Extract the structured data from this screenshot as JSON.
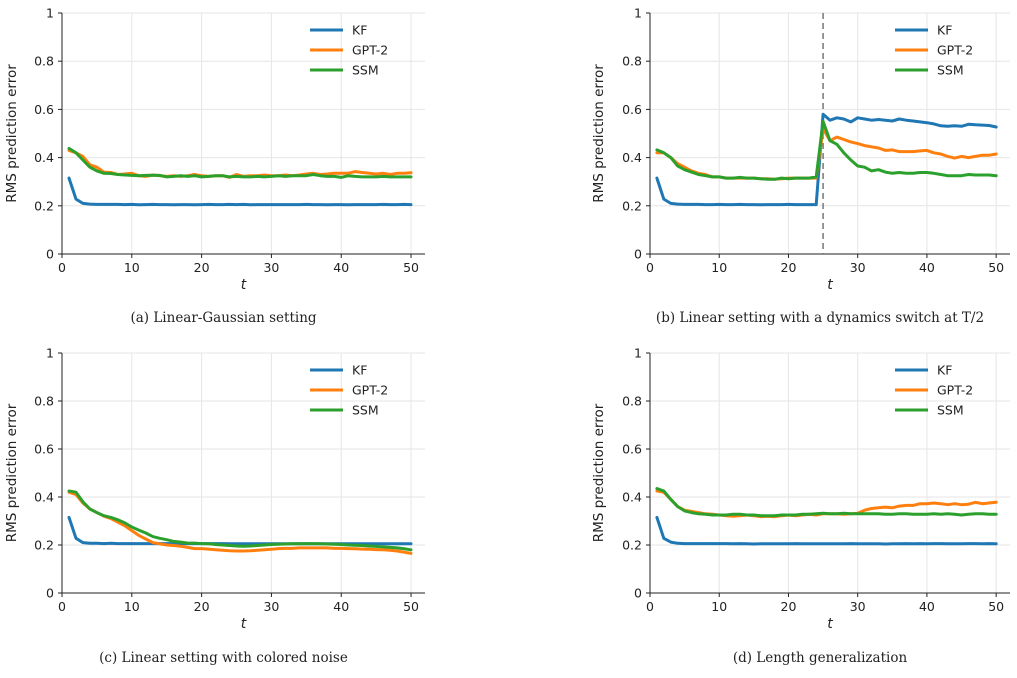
{
  "colors": {
    "KF": "#1f77b4",
    "GPT-2": "#ff7f0e",
    "SSM": "#2ca02c",
    "switch": "#777777"
  },
  "chart_data": [
    {
      "type": "line",
      "caption": "(a) Linear-Gaussian setting",
      "xlabel": "t",
      "ylabel": "RMS prediction error",
      "xlim": [
        0,
        52
      ],
      "ylim": [
        0,
        1.0
      ],
      "xticks": [
        0,
        10,
        20,
        30,
        40,
        50
      ],
      "yticks": [
        0.0,
        0.2,
        0.4,
        0.6,
        0.8,
        1.0
      ],
      "grid": true,
      "legend": "top-right",
      "x": [
        1,
        2,
        3,
        4,
        5,
        6,
        7,
        8,
        9,
        10,
        11,
        12,
        13,
        14,
        15,
        16,
        17,
        18,
        19,
        20,
        21,
        22,
        23,
        24,
        25,
        26,
        27,
        28,
        29,
        30,
        31,
        32,
        33,
        34,
        35,
        36,
        37,
        38,
        39,
        40,
        41,
        42,
        43,
        44,
        45,
        46,
        47,
        48,
        49,
        50
      ],
      "series": [
        {
          "name": "KF",
          "values": [
            0.315,
            0.228,
            0.21,
            0.207,
            0.206,
            0.206,
            0.206,
            0.206,
            0.205,
            0.206,
            0.204,
            0.205,
            0.206,
            0.205,
            0.205,
            0.204,
            0.205,
            0.205,
            0.204,
            0.205,
            0.206,
            0.205,
            0.205,
            0.206,
            0.205,
            0.206,
            0.204,
            0.205,
            0.205,
            0.205,
            0.205,
            0.205,
            0.205,
            0.205,
            0.206,
            0.205,
            0.205,
            0.204,
            0.205,
            0.205,
            0.204,
            0.205,
            0.205,
            0.205,
            0.205,
            0.206,
            0.205,
            0.205,
            0.206,
            0.205
          ]
        },
        {
          "name": "GPT-2",
          "values": [
            0.43,
            0.42,
            0.405,
            0.37,
            0.36,
            0.34,
            0.338,
            0.33,
            0.332,
            0.335,
            0.325,
            0.322,
            0.328,
            0.325,
            0.322,
            0.325,
            0.322,
            0.325,
            0.33,
            0.325,
            0.322,
            0.325,
            0.325,
            0.318,
            0.33,
            0.322,
            0.325,
            0.325,
            0.328,
            0.325,
            0.325,
            0.328,
            0.325,
            0.328,
            0.332,
            0.335,
            0.33,
            0.332,
            0.335,
            0.335,
            0.335,
            0.342,
            0.338,
            0.335,
            0.332,
            0.335,
            0.33,
            0.335,
            0.335,
            0.337
          ]
        },
        {
          "name": "SSM",
          "values": [
            0.438,
            0.42,
            0.39,
            0.36,
            0.345,
            0.335,
            0.334,
            0.33,
            0.328,
            0.326,
            0.325,
            0.326,
            0.327,
            0.326,
            0.32,
            0.322,
            0.325,
            0.322,
            0.325,
            0.32,
            0.322,
            0.325,
            0.325,
            0.32,
            0.322,
            0.32,
            0.32,
            0.322,
            0.32,
            0.322,
            0.325,
            0.322,
            0.325,
            0.325,
            0.325,
            0.33,
            0.325,
            0.322,
            0.322,
            0.318,
            0.325,
            0.322,
            0.32,
            0.32,
            0.32,
            0.322,
            0.32,
            0.32,
            0.32,
            0.32
          ]
        }
      ]
    },
    {
      "type": "line",
      "caption": "(b) Linear setting with a dynamics switch at T/2",
      "xlabel": "t",
      "ylabel": "RMS prediction error",
      "xlim": [
        0,
        52
      ],
      "ylim": [
        0,
        1.0
      ],
      "xticks": [
        0,
        10,
        20,
        30,
        40,
        50
      ],
      "yticks": [
        0.0,
        0.2,
        0.4,
        0.6,
        0.8,
        1.0
      ],
      "grid": true,
      "legend": "top-right",
      "vline": 25,
      "x": [
        1,
        2,
        3,
        4,
        5,
        6,
        7,
        8,
        9,
        10,
        11,
        12,
        13,
        14,
        15,
        16,
        17,
        18,
        19,
        20,
        21,
        22,
        23,
        24,
        25,
        26,
        27,
        28,
        29,
        30,
        31,
        32,
        33,
        34,
        35,
        36,
        37,
        38,
        39,
        40,
        41,
        42,
        43,
        44,
        45,
        46,
        47,
        48,
        49,
        50
      ],
      "series": [
        {
          "name": "KF",
          "values": [
            0.315,
            0.228,
            0.21,
            0.207,
            0.206,
            0.206,
            0.206,
            0.205,
            0.205,
            0.206,
            0.205,
            0.205,
            0.206,
            0.205,
            0.205,
            0.204,
            0.205,
            0.205,
            0.205,
            0.206,
            0.205,
            0.205,
            0.205,
            0.205,
            0.58,
            0.555,
            0.565,
            0.56,
            0.548,
            0.565,
            0.56,
            0.555,
            0.558,
            0.555,
            0.552,
            0.56,
            0.555,
            0.552,
            0.548,
            0.545,
            0.54,
            0.532,
            0.53,
            0.532,
            0.53,
            0.538,
            0.536,
            0.535,
            0.533,
            0.527
          ]
        },
        {
          "name": "GPT-2",
          "values": [
            0.42,
            0.42,
            0.4,
            0.375,
            0.36,
            0.345,
            0.335,
            0.33,
            0.32,
            0.32,
            0.315,
            0.315,
            0.315,
            0.315,
            0.315,
            0.312,
            0.312,
            0.31,
            0.312,
            0.315,
            0.315,
            0.315,
            0.315,
            0.315,
            0.52,
            0.47,
            0.485,
            0.475,
            0.465,
            0.458,
            0.45,
            0.445,
            0.44,
            0.43,
            0.432,
            0.425,
            0.425,
            0.425,
            0.428,
            0.43,
            0.42,
            0.415,
            0.405,
            0.398,
            0.405,
            0.4,
            0.405,
            0.41,
            0.41,
            0.415
          ]
        },
        {
          "name": "SSM",
          "values": [
            0.432,
            0.42,
            0.4,
            0.365,
            0.35,
            0.34,
            0.33,
            0.325,
            0.32,
            0.32,
            0.315,
            0.315,
            0.318,
            0.315,
            0.315,
            0.312,
            0.31,
            0.31,
            0.315,
            0.312,
            0.315,
            0.315,
            0.315,
            0.32,
            0.55,
            0.47,
            0.455,
            0.42,
            0.39,
            0.365,
            0.36,
            0.345,
            0.35,
            0.34,
            0.335,
            0.338,
            0.335,
            0.335,
            0.338,
            0.338,
            0.335,
            0.33,
            0.325,
            0.325,
            0.325,
            0.33,
            0.328,
            0.328,
            0.328,
            0.325
          ]
        }
      ]
    },
    {
      "type": "line",
      "caption": "(c) Linear setting with colored noise",
      "xlabel": "t",
      "ylabel": "RMS prediction error",
      "xlim": [
        0,
        52
      ],
      "ylim": [
        0,
        1.0
      ],
      "xticks": [
        0,
        10,
        20,
        30,
        40,
        50
      ],
      "yticks": [
        0.0,
        0.2,
        0.4,
        0.6,
        0.8,
        1.0
      ],
      "grid": true,
      "legend": "top-right",
      "x": [
        1,
        2,
        3,
        4,
        5,
        6,
        7,
        8,
        9,
        10,
        11,
        12,
        13,
        14,
        15,
        16,
        17,
        18,
        19,
        20,
        21,
        22,
        23,
        24,
        25,
        26,
        27,
        28,
        29,
        30,
        31,
        32,
        33,
        34,
        35,
        36,
        37,
        38,
        39,
        40,
        41,
        42,
        43,
        44,
        45,
        46,
        47,
        48,
        49,
        50
      ],
      "series": [
        {
          "name": "KF",
          "values": [
            0.315,
            0.228,
            0.21,
            0.207,
            0.207,
            0.206,
            0.207,
            0.206,
            0.206,
            0.206,
            0.206,
            0.206,
            0.206,
            0.206,
            0.206,
            0.206,
            0.206,
            0.206,
            0.206,
            0.206,
            0.206,
            0.206,
            0.206,
            0.205,
            0.205,
            0.205,
            0.205,
            0.205,
            0.205,
            0.205,
            0.205,
            0.205,
            0.205,
            0.205,
            0.205,
            0.205,
            0.205,
            0.205,
            0.205,
            0.205,
            0.205,
            0.205,
            0.205,
            0.205,
            0.205,
            0.205,
            0.205,
            0.205,
            0.205,
            0.205
          ]
        },
        {
          "name": "GPT-2",
          "values": [
            0.42,
            0.41,
            0.375,
            0.35,
            0.335,
            0.32,
            0.31,
            0.295,
            0.28,
            0.26,
            0.24,
            0.225,
            0.21,
            0.205,
            0.2,
            0.198,
            0.195,
            0.19,
            0.185,
            0.185,
            0.183,
            0.18,
            0.178,
            0.176,
            0.175,
            0.175,
            0.176,
            0.178,
            0.18,
            0.182,
            0.185,
            0.186,
            0.186,
            0.188,
            0.188,
            0.188,
            0.188,
            0.188,
            0.186,
            0.186,
            0.185,
            0.184,
            0.183,
            0.182,
            0.181,
            0.18,
            0.178,
            0.175,
            0.17,
            0.165
          ]
        },
        {
          "name": "SSM",
          "values": [
            0.425,
            0.42,
            0.38,
            0.35,
            0.335,
            0.322,
            0.315,
            0.305,
            0.292,
            0.275,
            0.262,
            0.25,
            0.235,
            0.228,
            0.222,
            0.215,
            0.212,
            0.208,
            0.208,
            0.206,
            0.205,
            0.202,
            0.2,
            0.198,
            0.196,
            0.195,
            0.196,
            0.198,
            0.2,
            0.202,
            0.203,
            0.204,
            0.205,
            0.205,
            0.206,
            0.205,
            0.205,
            0.204,
            0.203,
            0.202,
            0.2,
            0.199,
            0.198,
            0.196,
            0.194,
            0.192,
            0.19,
            0.188,
            0.184,
            0.18
          ]
        }
      ]
    },
    {
      "type": "line",
      "caption": "(d) Length generalization",
      "xlabel": "t",
      "ylabel": "RMS prediction error",
      "xlim": [
        0,
        52
      ],
      "ylim": [
        0,
        1.0
      ],
      "xticks": [
        0,
        10,
        20,
        30,
        40,
        50
      ],
      "yticks": [
        0.0,
        0.2,
        0.4,
        0.6,
        0.8,
        1.0
      ],
      "grid": true,
      "legend": "top-right",
      "x": [
        1,
        2,
        3,
        4,
        5,
        6,
        7,
        8,
        9,
        10,
        11,
        12,
        13,
        14,
        15,
        16,
        17,
        18,
        19,
        20,
        21,
        22,
        23,
        24,
        25,
        26,
        27,
        28,
        29,
        30,
        31,
        32,
        33,
        34,
        35,
        36,
        37,
        38,
        39,
        40,
        41,
        42,
        43,
        44,
        45,
        46,
        47,
        48,
        49,
        50
      ],
      "series": [
        {
          "name": "KF",
          "values": [
            0.315,
            0.228,
            0.212,
            0.207,
            0.206,
            0.206,
            0.206,
            0.206,
            0.206,
            0.206,
            0.206,
            0.205,
            0.206,
            0.205,
            0.204,
            0.205,
            0.205,
            0.205,
            0.205,
            0.205,
            0.206,
            0.205,
            0.205,
            0.205,
            0.205,
            0.205,
            0.205,
            0.205,
            0.206,
            0.205,
            0.205,
            0.205,
            0.205,
            0.204,
            0.205,
            0.205,
            0.206,
            0.205,
            0.206,
            0.205,
            0.206,
            0.206,
            0.205,
            0.205,
            0.205,
            0.206,
            0.206,
            0.205,
            0.206,
            0.205
          ]
        },
        {
          "name": "GPT-2",
          "values": [
            0.425,
            0.42,
            0.39,
            0.36,
            0.345,
            0.34,
            0.335,
            0.33,
            0.328,
            0.325,
            0.322,
            0.32,
            0.322,
            0.325,
            0.322,
            0.318,
            0.32,
            0.318,
            0.322,
            0.325,
            0.322,
            0.325,
            0.328,
            0.325,
            0.33,
            0.33,
            0.33,
            0.328,
            0.33,
            0.332,
            0.345,
            0.352,
            0.355,
            0.358,
            0.355,
            0.362,
            0.365,
            0.365,
            0.372,
            0.372,
            0.375,
            0.372,
            0.368,
            0.372,
            0.368,
            0.37,
            0.378,
            0.372,
            0.375,
            0.378
          ]
        },
        {
          "name": "SSM",
          "values": [
            0.435,
            0.425,
            0.39,
            0.36,
            0.342,
            0.335,
            0.33,
            0.328,
            0.325,
            0.325,
            0.325,
            0.328,
            0.328,
            0.325,
            0.325,
            0.322,
            0.322,
            0.322,
            0.325,
            0.325,
            0.325,
            0.328,
            0.328,
            0.33,
            0.332,
            0.33,
            0.33,
            0.332,
            0.33,
            0.33,
            0.33,
            0.33,
            0.33,
            0.328,
            0.328,
            0.33,
            0.33,
            0.328,
            0.328,
            0.328,
            0.33,
            0.328,
            0.33,
            0.328,
            0.325,
            0.328,
            0.33,
            0.33,
            0.328,
            0.328
          ]
        }
      ]
    }
  ]
}
